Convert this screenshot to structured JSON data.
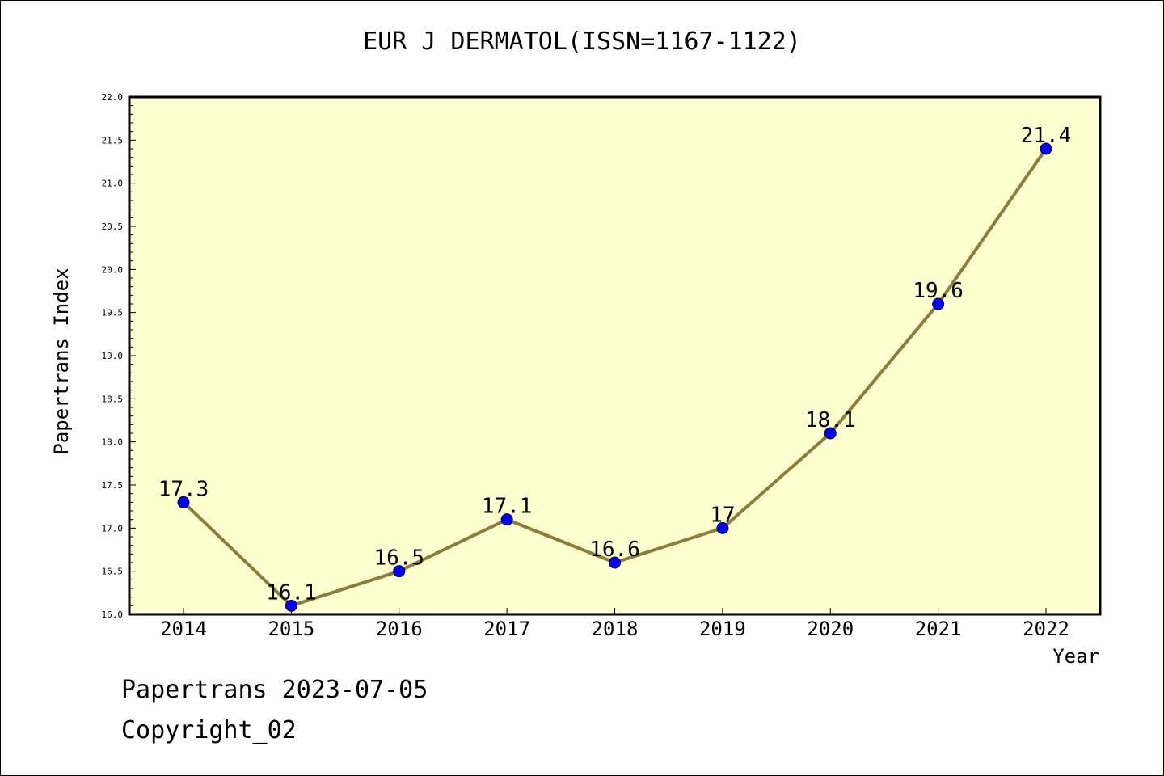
{
  "title": "EUR J DERMATOL(ISSN=1167-1122)",
  "footer": {
    "line1": "Papertrans 2023-07-05",
    "line2": "Copyright_02"
  },
  "colors": {
    "plot_background": "#ffffd0",
    "line": "#8b7d3a",
    "marker": "#0000ff"
  },
  "chart_data": {
    "type": "line",
    "title": "EUR J DERMATOL(ISSN=1167-1122)",
    "xlabel": "Year",
    "ylabel": "Papertrans Index",
    "categories": [
      "2014",
      "2015",
      "2016",
      "2017",
      "2018",
      "2019",
      "2020",
      "2021",
      "2022"
    ],
    "values": [
      17.3,
      16.1,
      16.5,
      17.1,
      16.6,
      17.0,
      18.1,
      19.6,
      21.4
    ],
    "data_labels": [
      "17.3",
      "16.1",
      "16.5",
      "17.1",
      "16.6",
      "17",
      "18.1",
      "19.6",
      "21.4"
    ],
    "ylim": [
      16.0,
      22.0
    ],
    "yticks": [
      "16.0",
      "16.5",
      "17.0",
      "17.5",
      "18.0",
      "18.5",
      "19.0",
      "19.5",
      "20.0",
      "20.5",
      "21.0",
      "21.5",
      "22.0"
    ],
    "grid": false,
    "legend": "none"
  }
}
